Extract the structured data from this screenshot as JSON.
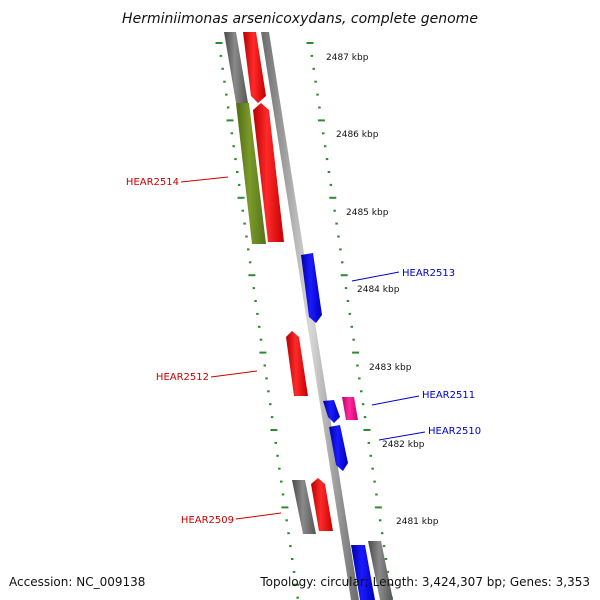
{
  "title": "Herminiimonas arsenicoxydans, complete genome",
  "scale_labels": [
    "2487 kbp",
    "2486 kbp",
    "2485 kbp",
    "2484 kbp",
    "2483 kbp",
    "2482 kbp",
    "2481 kbp"
  ],
  "gene_labels": {
    "hear2514": "HEAR2514",
    "hear2513": "HEAR2513",
    "hear2512": "HEAR2512",
    "hear2511": "HEAR2511",
    "hear2510": "HEAR2510",
    "hear2509": "HEAR2509"
  },
  "footer": {
    "accession": "Accession: NC_009138",
    "summary": "Topology: circular; Length: 3,424,307 bp; Genes: 3,353"
  },
  "colors": {
    "forward_gene": "#ff0000",
    "reverse_gene": "#0000ff",
    "gray_feature": "#666666",
    "olive_feature": "#6b8e23",
    "magenta_feature": "#ff1493",
    "tick_mark": "#2e8b2e",
    "forward_label": "#cc0000",
    "reverse_label": "#0000cc"
  }
}
